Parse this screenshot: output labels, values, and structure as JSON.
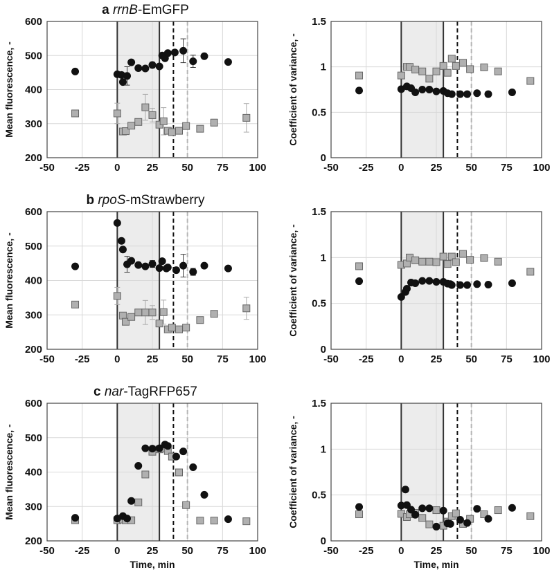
{
  "figure": {
    "xlabel": "Time, min"
  },
  "colors": {
    "circle": "#111111",
    "square_fill": "#b0b0b0",
    "square_edge": "#666666",
    "shade": "#ececec",
    "dash_black": "#111111",
    "dash_gray": "#b5b5b5"
  },
  "chart_data": [
    {
      "type": "scatter",
      "panel": "a",
      "gene": "rrnB",
      "reporter": "-EmGFP",
      "ylabel": "Mean fluorescence, -",
      "xlim": [
        -50,
        100
      ],
      "ylim": [
        200,
        600
      ],
      "xticks": [
        "-50",
        "-25",
        "0",
        "25",
        "50",
        "75",
        "100"
      ],
      "yticks": [
        "200",
        "300",
        "400",
        "500",
        "600"
      ],
      "grid": true,
      "shaded_interval": [
        0,
        30
      ],
      "vlines_solid": [
        0,
        30
      ],
      "vline_dash_black": 40,
      "vline_dash_gray": 50,
      "series": [
        {
          "name": "circles",
          "marker": "circle",
          "x": [
            -30,
            0,
            3,
            4,
            7,
            10,
            15,
            20,
            25,
            30,
            32,
            34,
            36,
            41,
            47,
            54,
            62,
            79
          ],
          "y": [
            453,
            445,
            443,
            422,
            440,
            480,
            463,
            462,
            472,
            468,
            500,
            492,
            507,
            509,
            514,
            483,
            498,
            481
          ],
          "err": [
            0,
            0,
            0,
            0,
            27,
            0,
            8,
            0,
            8,
            0,
            0,
            0,
            0,
            0,
            35,
            18,
            0,
            0
          ]
        },
        {
          "name": "squares",
          "marker": "square",
          "x": [
            -30,
            0,
            4,
            6,
            10,
            15,
            20,
            25,
            30,
            33,
            36,
            39,
            44,
            49,
            59,
            69,
            92
          ],
          "y": [
            330,
            330,
            277,
            278,
            294,
            305,
            348,
            325,
            297,
            307,
            279,
            275,
            279,
            293,
            285,
            303,
            317
          ],
          "err": [
            0,
            30,
            0,
            0,
            0,
            0,
            38,
            20,
            0,
            40,
            0,
            0,
            0,
            0,
            0,
            10,
            42
          ]
        }
      ]
    },
    {
      "type": "scatter",
      "panel": "a",
      "gene": "",
      "reporter": "",
      "ylabel": "Coefficient of variance, -",
      "xlim": [
        -50,
        100
      ],
      "ylim": [
        0,
        1.5
      ],
      "xticks": [
        "-50",
        "-25",
        "0",
        "25",
        "50",
        "75",
        "100"
      ],
      "yticks": [
        "0",
        "0.5",
        "1",
        "1.5"
      ],
      "grid": true,
      "shaded_interval": [
        0,
        30
      ],
      "vlines_solid": [
        0,
        30
      ],
      "vline_dash_black": 40,
      "vline_dash_gray": 50,
      "series": [
        {
          "name": "circles",
          "marker": "circle",
          "x": [
            -30,
            0,
            4,
            7,
            10,
            15,
            20,
            25,
            30,
            33,
            36,
            42,
            47,
            54,
            62,
            79
          ],
          "y": [
            0.74,
            0.755,
            0.785,
            0.765,
            0.72,
            0.75,
            0.75,
            0.73,
            0.735,
            0.71,
            0.7,
            0.7,
            0.7,
            0.71,
            0.7,
            0.72
          ]
        },
        {
          "name": "squares",
          "marker": "square",
          "x": [
            -30,
            0,
            4,
            6,
            10,
            15,
            20,
            25,
            30,
            33,
            36,
            39,
            44,
            49,
            59,
            69,
            92
          ],
          "y": [
            0.905,
            0.905,
            1.0,
            1.0,
            0.97,
            0.95,
            0.87,
            0.95,
            1.01,
            0.935,
            1.09,
            1.01,
            1.045,
            0.975,
            0.995,
            0.95,
            0.845
          ]
        }
      ]
    },
    {
      "type": "scatter",
      "panel": "b",
      "gene": "rpoS",
      "reporter": "-mStrawberry",
      "ylabel": "Mean fluorescence, -",
      "xlim": [
        -50,
        100
      ],
      "ylim": [
        200,
        600
      ],
      "xticks": [
        "-50",
        "-25",
        "0",
        "25",
        "50",
        "75",
        "100"
      ],
      "yticks": [
        "200",
        "300",
        "400",
        "500",
        "600"
      ],
      "grid": true,
      "shaded_interval": [
        0,
        30
      ],
      "vlines_solid": [
        0,
        30
      ],
      "vline_dash_black": 40,
      "vline_dash_gray": 50,
      "series": [
        {
          "name": "circles",
          "marker": "circle",
          "x": [
            -30,
            0,
            3,
            4,
            7,
            10,
            15,
            20,
            25,
            30,
            32,
            35,
            36,
            42,
            47,
            54,
            62,
            79
          ],
          "y": [
            441,
            567,
            515,
            490,
            447,
            457,
            445,
            441,
            448,
            436,
            456,
            435,
            438,
            430,
            443,
            425,
            443,
            435
          ],
          "err": [
            0,
            0,
            0,
            0,
            23,
            0,
            0,
            0,
            10,
            0,
            0,
            0,
            0,
            0,
            33,
            10,
            0,
            0
          ]
        },
        {
          "name": "squares",
          "marker": "square",
          "x": [
            -30,
            0,
            4,
            6,
            10,
            15,
            20,
            25,
            30,
            33,
            36,
            39,
            44,
            49,
            59,
            69,
            92
          ],
          "y": [
            330,
            355,
            298,
            280,
            294,
            307,
            307,
            307,
            275,
            308,
            258,
            263,
            258,
            263,
            285,
            303,
            319
          ],
          "err": [
            0,
            25,
            0,
            0,
            0,
            0,
            35,
            20,
            0,
            35,
            0,
            0,
            0,
            0,
            0,
            5,
            32
          ]
        }
      ]
    },
    {
      "type": "scatter",
      "panel": "b",
      "gene": "",
      "reporter": "",
      "ylabel": "Coefficient of variance, -",
      "xlim": [
        -50,
        100
      ],
      "ylim": [
        0,
        1.5
      ],
      "xticks": [
        "-50",
        "-25",
        "0",
        "25",
        "50",
        "75",
        "100"
      ],
      "yticks": [
        "0",
        "0.5",
        "1",
        "1.5"
      ],
      "grid": true,
      "shaded_interval": [
        0,
        30
      ],
      "vlines_solid": [
        0,
        30
      ],
      "vline_dash_black": 40,
      "vline_dash_gray": 50,
      "series": [
        {
          "name": "circles",
          "marker": "circle",
          "x": [
            -30,
            0,
            3,
            4,
            7,
            10,
            15,
            20,
            25,
            30,
            33,
            35,
            36,
            42,
            47,
            54,
            62,
            79
          ],
          "y": [
            0.742,
            0.57,
            0.625,
            0.66,
            0.727,
            0.72,
            0.745,
            0.745,
            0.735,
            0.735,
            0.715,
            0.71,
            0.7,
            0.7,
            0.7,
            0.71,
            0.705,
            0.72
          ]
        },
        {
          "name": "squares",
          "marker": "square",
          "x": [
            -30,
            0,
            4,
            6,
            10,
            15,
            20,
            25,
            30,
            33,
            36,
            39,
            44,
            49,
            59,
            69,
            92
          ],
          "y": [
            0.905,
            0.92,
            0.935,
            1.0,
            0.97,
            0.955,
            0.955,
            0.95,
            1.01,
            0.93,
            1.01,
            0.95,
            1.04,
            0.975,
            0.995,
            0.955,
            0.845
          ]
        }
      ]
    },
    {
      "type": "scatter",
      "panel": "c",
      "gene": "nar",
      "reporter": "-TagRFP657",
      "ylabel": "Mean fluorescence, -",
      "xlim": [
        -50,
        100
      ],
      "ylim": [
        200,
        600
      ],
      "xticks": [
        "-50",
        "-25",
        "0",
        "25",
        "50",
        "75",
        "100"
      ],
      "yticks": [
        "200",
        "300",
        "400",
        "500",
        "600"
      ],
      "grid": true,
      "shaded_interval": [
        0,
        30
      ],
      "vlines_solid": [
        0,
        30
      ],
      "vline_dash_black": 40,
      "vline_dash_gray": 50,
      "series": [
        {
          "name": "circles",
          "marker": "circle",
          "x": [
            -30,
            0,
            4,
            7,
            10,
            15,
            20,
            25,
            30,
            34,
            36,
            42,
            47,
            54,
            62,
            79
          ],
          "y": [
            267,
            265,
            272,
            265,
            316,
            418,
            469,
            468,
            469,
            480,
            476,
            445,
            460,
            414,
            334,
            263
          ]
        },
        {
          "name": "squares",
          "marker": "square",
          "x": [
            -30,
            0,
            4,
            6,
            10,
            15,
            20,
            25,
            30,
            33,
            36,
            39,
            44,
            49,
            59,
            69,
            92
          ],
          "y": [
            260,
            260,
            262,
            260,
            260,
            312,
            393,
            459,
            466,
            469,
            461,
            445,
            399,
            304,
            259,
            259,
            257
          ]
        }
      ]
    },
    {
      "type": "scatter",
      "panel": "c",
      "gene": "",
      "reporter": "",
      "ylabel": "Coefficient of variance, -",
      "xlim": [
        -50,
        100
      ],
      "ylim": [
        0,
        1.5
      ],
      "xticks": [
        "-50",
        "-25",
        "0",
        "25",
        "50",
        "75",
        "100"
      ],
      "yticks": [
        "0",
        "0.5",
        "1",
        "1.5"
      ],
      "grid": true,
      "shaded_interval": [
        0,
        30
      ],
      "vlines_solid": [
        0,
        30
      ],
      "vline_dash_black": 40,
      "vline_dash_gray": 50,
      "series": [
        {
          "name": "circles",
          "marker": "circle",
          "x": [
            -30,
            0,
            3,
            4,
            7,
            10,
            15,
            20,
            25,
            30,
            33,
            35,
            42,
            47,
            54,
            62,
            79
          ],
          "y": [
            0.37,
            0.385,
            0.56,
            0.39,
            0.34,
            0.285,
            0.355,
            0.355,
            0.155,
            0.33,
            0.19,
            0.185,
            0.23,
            0.195,
            0.35,
            0.24,
            0.36
          ]
        },
        {
          "name": "squares",
          "marker": "square",
          "x": [
            -30,
            0,
            4,
            6,
            10,
            15,
            20,
            25,
            30,
            33,
            36,
            39,
            44,
            49,
            59,
            69,
            92
          ],
          "y": [
            0.29,
            0.295,
            0.26,
            0.29,
            0.305,
            0.25,
            0.18,
            0.335,
            0.165,
            0.21,
            0.27,
            0.3,
            0.185,
            0.24,
            0.29,
            0.335,
            0.27
          ]
        }
      ]
    }
  ]
}
